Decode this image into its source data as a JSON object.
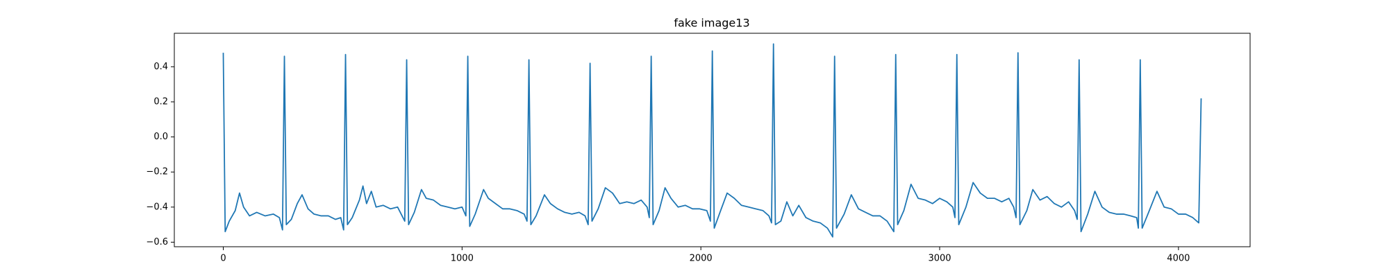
{
  "chart_data": {
    "type": "line",
    "title": "fake image13",
    "x": [
      0,
      8,
      25,
      50,
      68,
      85,
      110,
      140,
      175,
      210,
      235,
      248,
      256,
      264,
      285,
      310,
      330,
      355,
      380,
      410,
      440,
      470,
      492,
      504,
      512,
      520,
      540,
      570,
      585,
      600,
      620,
      640,
      670,
      700,
      730,
      760,
      768,
      776,
      800,
      830,
      850,
      880,
      910,
      940,
      970,
      1000,
      1016,
      1024,
      1032,
      1055,
      1090,
      1110,
      1140,
      1170,
      1200,
      1230,
      1260,
      1272,
      1280,
      1288,
      1310,
      1345,
      1370,
      1400,
      1430,
      1460,
      1490,
      1515,
      1528,
      1536,
      1544,
      1570,
      1600,
      1630,
      1660,
      1690,
      1720,
      1750,
      1775,
      1784,
      1792,
      1800,
      1825,
      1850,
      1875,
      1905,
      1935,
      1965,
      1995,
      2025,
      2040,
      2048,
      2056,
      2080,
      2110,
      2140,
      2170,
      2200,
      2230,
      2260,
      2285,
      2296,
      2304,
      2312,
      2335,
      2360,
      2385,
      2410,
      2440,
      2470,
      2500,
      2530,
      2552,
      2560,
      2568,
      2600,
      2630,
      2660,
      2690,
      2720,
      2750,
      2780,
      2808,
      2816,
      2824,
      2850,
      2880,
      2910,
      2940,
      2970,
      3000,
      3030,
      3055,
      3064,
      3072,
      3080,
      3110,
      3140,
      3170,
      3200,
      3230,
      3260,
      3290,
      3310,
      3320,
      3328,
      3336,
      3365,
      3390,
      3420,
      3450,
      3480,
      3510,
      3540,
      3565,
      3576,
      3584,
      3592,
      3620,
      3650,
      3680,
      3710,
      3740,
      3770,
      3800,
      3825,
      3832,
      3840,
      3848,
      3875,
      3910,
      3940,
      3970,
      4000,
      4030,
      4060,
      4085,
      4095
    ],
    "series": [
      {
        "color": "#1f77b4",
        "values": [
          0.48,
          -0.54,
          -0.48,
          -0.42,
          -0.32,
          -0.4,
          -0.45,
          -0.43,
          -0.45,
          -0.44,
          -0.46,
          -0.53,
          0.46,
          -0.5,
          -0.47,
          -0.38,
          -0.33,
          -0.41,
          -0.44,
          -0.45,
          -0.45,
          -0.47,
          -0.46,
          -0.53,
          0.47,
          -0.5,
          -0.46,
          -0.36,
          -0.28,
          -0.38,
          -0.31,
          -0.4,
          -0.39,
          -0.41,
          -0.4,
          -0.48,
          0.44,
          -0.5,
          -0.43,
          -0.3,
          -0.35,
          -0.36,
          -0.39,
          -0.4,
          -0.41,
          -0.4,
          -0.45,
          0.46,
          -0.51,
          -0.44,
          -0.3,
          -0.35,
          -0.38,
          -0.41,
          -0.41,
          -0.42,
          -0.44,
          -0.48,
          0.44,
          -0.5,
          -0.45,
          -0.33,
          -0.38,
          -0.41,
          -0.43,
          -0.44,
          -0.43,
          -0.45,
          -0.5,
          0.42,
          -0.48,
          -0.41,
          -0.29,
          -0.32,
          -0.38,
          -0.37,
          -0.38,
          -0.36,
          -0.4,
          -0.46,
          0.46,
          -0.5,
          -0.42,
          -0.29,
          -0.35,
          -0.4,
          -0.39,
          -0.41,
          -0.41,
          -0.42,
          -0.48,
          0.49,
          -0.52,
          -0.43,
          -0.32,
          -0.35,
          -0.39,
          -0.4,
          -0.41,
          -0.42,
          -0.45,
          -0.49,
          0.53,
          -0.5,
          -0.48,
          -0.37,
          -0.45,
          -0.39,
          -0.46,
          -0.48,
          -0.49,
          -0.52,
          -0.57,
          0.46,
          -0.52,
          -0.44,
          -0.33,
          -0.41,
          -0.43,
          -0.45,
          -0.45,
          -0.48,
          -0.54,
          0.47,
          -0.5,
          -0.42,
          -0.27,
          -0.35,
          -0.36,
          -0.38,
          -0.35,
          -0.37,
          -0.4,
          -0.46,
          0.47,
          -0.5,
          -0.4,
          -0.26,
          -0.32,
          -0.35,
          -0.35,
          -0.37,
          -0.35,
          -0.4,
          -0.46,
          0.48,
          -0.5,
          -0.42,
          -0.3,
          -0.36,
          -0.34,
          -0.38,
          -0.4,
          -0.37,
          -0.42,
          -0.47,
          0.44,
          -0.54,
          -0.44,
          -0.31,
          -0.4,
          -0.43,
          -0.44,
          -0.44,
          -0.45,
          -0.46,
          -0.52,
          0.44,
          -0.52,
          -0.43,
          -0.31,
          -0.4,
          -0.41,
          -0.44,
          -0.44,
          -0.46,
          -0.49,
          0.22
        ]
      }
    ],
    "xlim": [
      -205,
      4300
    ],
    "ylim": [
      -0.626,
      0.591
    ],
    "xticks": [
      0,
      1000,
      2000,
      3000,
      4000
    ],
    "yticks": [
      {
        "value": -0.6,
        "label": "−0.6"
      },
      {
        "value": -0.4,
        "label": "−0.4"
      },
      {
        "value": -0.2,
        "label": "−0.2"
      },
      {
        "value": 0,
        "label": "0.0"
      },
      0.2,
      0.4
    ]
  }
}
